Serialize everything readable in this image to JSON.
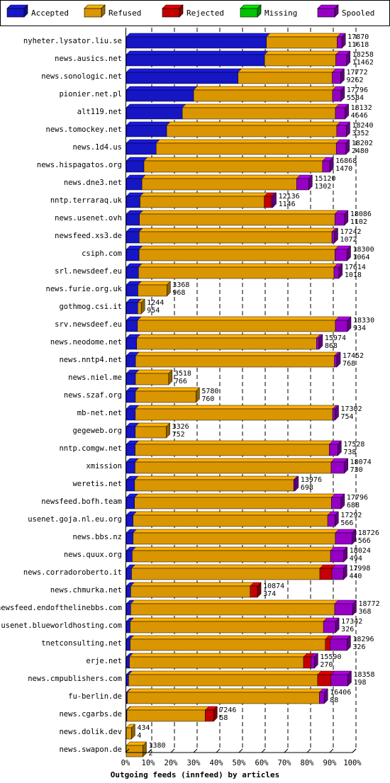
{
  "chart_data": {
    "type": "bar",
    "orientation": "horizontal",
    "stacked": true,
    "title": "Outgoing feeds (innfeed) by articles",
    "series_names": [
      "Accepted",
      "Refused",
      "Rejected",
      "Missing",
      "Spooled"
    ],
    "colors": {
      "Accepted": "#1a1ae6",
      "Refused": "#ffb000",
      "Rejected": "#e60000",
      "Missing": "#00e600",
      "Spooled": "#b000e6"
    },
    "x_ticks": [
      "0%",
      "10%",
      "20%",
      "30%",
      "40%",
      "50%",
      "60%",
      "70%",
      "80%",
      "90%",
      "100%"
    ],
    "xlim": [
      0,
      100
    ],
    "grid": true,
    "legend_position": "top",
    "rows": [
      {
        "label": "nyheter.lysator.liu.se",
        "total": "17870",
        "accepted": "11618",
        "acc": 11618,
        "ref": 5862,
        "rej": 0,
        "spo": 390
      },
      {
        "label": "news.ausics.net",
        "total": "18258",
        "accepted": "11462",
        "acc": 11462,
        "ref": 5900,
        "rej": 0,
        "spo": 896
      },
      {
        "label": "news.sonologic.net",
        "total": "17772",
        "accepted": "9262",
        "acc": 9262,
        "ref": 7810,
        "rej": 0,
        "spo": 700
      },
      {
        "label": "pionier.net.pl",
        "total": "17796",
        "accepted": "5584",
        "acc": 5584,
        "ref": 11512,
        "rej": 0,
        "spo": 700
      },
      {
        "label": "alt119.net",
        "total": "18132",
        "accepted": "4646",
        "acc": 4646,
        "ref": 12686,
        "rej": 0,
        "spo": 800
      },
      {
        "label": "news.tomockey.net",
        "total": "18240",
        "accepted": "3352",
        "acc": 3352,
        "ref": 14088,
        "rej": 0,
        "spo": 800
      },
      {
        "label": "news.1d4.us",
        "total": "18202",
        "accepted": "2480",
        "acc": 2480,
        "ref": 14922,
        "rej": 0,
        "spo": 800
      },
      {
        "label": "news.hispagatos.org",
        "total": "16868",
        "accepted": "1470",
        "acc": 1470,
        "ref": 14798,
        "rej": 0,
        "spo": 600
      },
      {
        "label": "news.dne3.net",
        "total": "15120",
        "accepted": "1302",
        "acc": 1302,
        "ref": 12818,
        "rej": 0,
        "spo": 1000
      },
      {
        "label": "nntp.terraraq.uk",
        "total": "12136",
        "accepted": "1146",
        "acc": 1146,
        "ref": 10290,
        "rej": 600,
        "spo": 100
      },
      {
        "label": "news.usenet.ovh",
        "total": "18086",
        "accepted": "1102",
        "acc": 1102,
        "ref": 16184,
        "rej": 0,
        "spo": 800
      },
      {
        "label": "newsfeed.xs3.de",
        "total": "17242",
        "accepted": "1072",
        "acc": 1072,
        "ref": 15970,
        "rej": 0,
        "spo": 200
      },
      {
        "label": "csiph.com",
        "total": "18300",
        "accepted": "1064",
        "acc": 1064,
        "ref": 16236,
        "rej": 0,
        "spo": 1000
      },
      {
        "label": "srl.newsdeef.eu",
        "total": "17614",
        "accepted": "1018",
        "acc": 1018,
        "ref": 16196,
        "rej": 0,
        "spo": 400
      },
      {
        "label": "news.furie.org.uk",
        "total": "3368",
        "accepted": "968",
        "acc": 968,
        "ref": 2400,
        "rej": 0,
        "spo": 0
      },
      {
        "label": "gothmog.csi.it",
        "total": "1244",
        "accepted": "954",
        "acc": 954,
        "ref": 290,
        "rej": 0,
        "spo": 0
      },
      {
        "label": "srv.newsdeef.eu",
        "total": "18330",
        "accepted": "934",
        "acc": 934,
        "ref": 16396,
        "rej": 0,
        "spo": 1000
      },
      {
        "label": "news.neodome.net",
        "total": "15974",
        "accepted": "868",
        "acc": 868,
        "ref": 14906,
        "rej": 0,
        "spo": 200
      },
      {
        "label": "news.nntp4.net",
        "total": "17452",
        "accepted": "768",
        "acc": 768,
        "ref": 16484,
        "rej": 0,
        "spo": 200
      },
      {
        "label": "news.niel.me",
        "total": "3518",
        "accepted": "766",
        "acc": 766,
        "ref": 2752,
        "rej": 0,
        "spo": 0
      },
      {
        "label": "news.szaf.org",
        "total": "5780",
        "accepted": "760",
        "acc": 760,
        "ref": 5020,
        "rej": 0,
        "spo": 0
      },
      {
        "label": "mb-net.net",
        "total": "17302",
        "accepted": "754",
        "acc": 754,
        "ref": 16348,
        "rej": 0,
        "spo": 200
      },
      {
        "label": "gegeweb.org",
        "total": "3326",
        "accepted": "752",
        "acc": 752,
        "ref": 2574,
        "rej": 0,
        "spo": 0
      },
      {
        "label": "nntp.comgw.net",
        "total": "17528",
        "accepted": "738",
        "acc": 738,
        "ref": 16090,
        "rej": 0,
        "spo": 700
      },
      {
        "label": "xmission",
        "total": "18074",
        "accepted": "730",
        "acc": 730,
        "ref": 16244,
        "rej": 0,
        "spo": 1100
      },
      {
        "label": "weretis.net",
        "total": "13976",
        "accepted": "698",
        "acc": 698,
        "ref": 13178,
        "rej": 0,
        "spo": 100
      },
      {
        "label": "newsfeed.bofh.team",
        "total": "17796",
        "accepted": "688",
        "acc": 688,
        "ref": 16308,
        "rej": 0,
        "spo": 800
      },
      {
        "label": "usenet.goja.nl.eu.org",
        "total": "17292",
        "accepted": "566",
        "acc": 566,
        "ref": 16126,
        "rej": 0,
        "spo": 600
      },
      {
        "label": "news.bbs.nz",
        "total": "18726",
        "accepted": "566",
        "acc": 566,
        "ref": 16760,
        "rej": 0,
        "spo": 1400
      },
      {
        "label": "news.quux.org",
        "total": "18024",
        "accepted": "494",
        "acc": 494,
        "ref": 16430,
        "rej": 0,
        "spo": 1100
      },
      {
        "label": "news.corradoroberto.it",
        "total": "17998",
        "accepted": "440",
        "acc": 440,
        "ref": 15600,
        "rej": 1000,
        "spo": 958
      },
      {
        "label": "news.chmurka.net",
        "total": "10874",
        "accepted": "374",
        "acc": 374,
        "ref": 9900,
        "rej": 600,
        "spo": 0
      },
      {
        "label": "newsfeed.endofthelinebbs.com",
        "total": "18772",
        "accepted": "368",
        "acc": 368,
        "ref": 16904,
        "rej": 0,
        "spo": 1500
      },
      {
        "label": "usenet.blueworldhosting.com",
        "total": "17342",
        "accepted": "326",
        "acc": 326,
        "ref": 16016,
        "rej": 0,
        "spo": 1000
      },
      {
        "label": "tnetconsulting.net",
        "total": "18296",
        "accepted": "326",
        "acc": 326,
        "ref": 16170,
        "rej": 400,
        "spo": 1400
      },
      {
        "label": "erje.net",
        "total": "15590",
        "accepted": "270",
        "acc": 270,
        "ref": 14420,
        "rej": 600,
        "spo": 300
      },
      {
        "label": "news.cmpublishers.com",
        "total": "18358",
        "accepted": "198",
        "acc": 198,
        "ref": 15660,
        "rej": 1100,
        "spo": 1400
      },
      {
        "label": "fu-berlin.de",
        "total": "16406",
        "accepted": "88",
        "acc": 88,
        "ref": 15918,
        "rej": 0,
        "spo": 400
      },
      {
        "label": "news.cgarbs.de",
        "total": "7246",
        "accepted": "58",
        "acc": 58,
        "ref": 6488,
        "rej": 700,
        "spo": 0
      },
      {
        "label": "news.dolik.dev",
        "total": "434",
        "accepted": "4",
        "acc": 4,
        "ref": 430,
        "rej": 0,
        "spo": 0
      },
      {
        "label": "news.swapon.de",
        "total": "1380",
        "accepted": "2",
        "acc": 2,
        "ref": 1378,
        "rej": 0,
        "spo": 0
      }
    ]
  }
}
